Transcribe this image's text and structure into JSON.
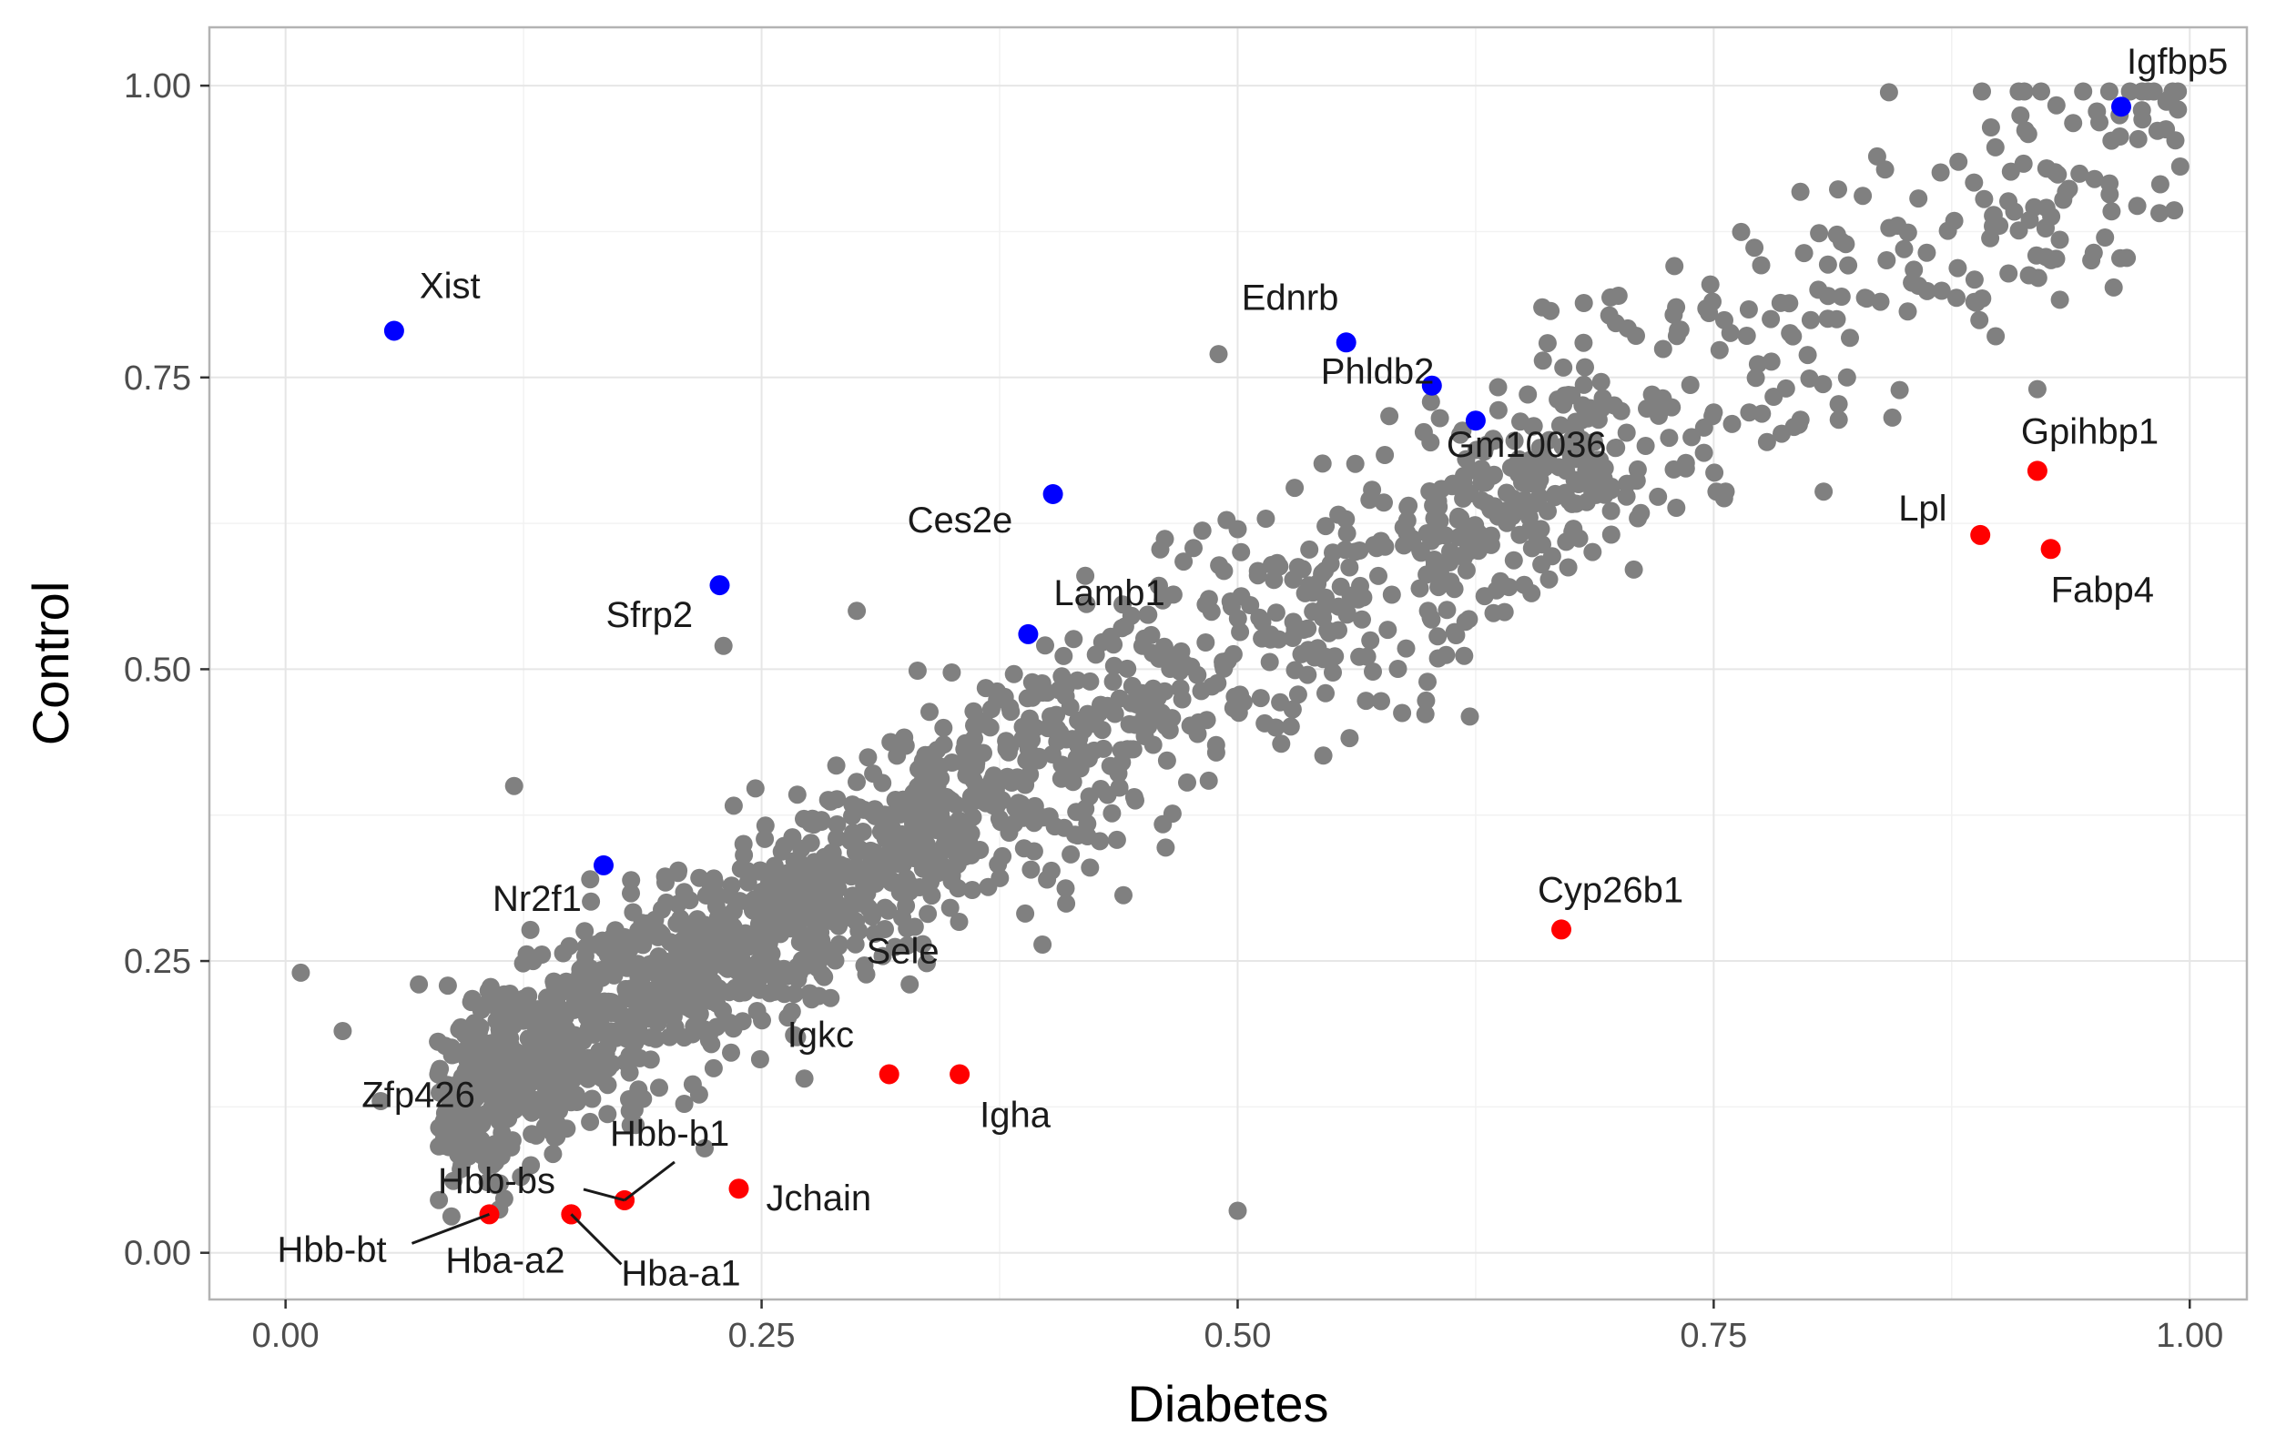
{
  "chart_data": {
    "type": "scatter",
    "title": "",
    "xlabel": "Diabetes",
    "ylabel": "Control",
    "xlim": [
      -0.04,
      1.03
    ],
    "ylim": [
      -0.04,
      1.05
    ],
    "x_ticks": [
      0,
      0.25,
      0.5,
      0.75,
      1.0
    ],
    "y_ticks": [
      0,
      0.25,
      0.5,
      0.75,
      1.0
    ],
    "x_tick_labels": [
      "0.00",
      "0.25",
      "0.50",
      "0.75",
      "1.00"
    ],
    "y_tick_labels": [
      "0.00",
      "0.25",
      "0.50",
      "0.75",
      "1.00"
    ],
    "grid": true,
    "legend": "none",
    "colors": {
      "background_points": "#808080",
      "up_in_diabetes": "#ff0000",
      "up_in_control": "#0000ff",
      "grid": "#e6e6e6",
      "panel_border": "#b3b3b3"
    },
    "background_points": {
      "description_count": "approx. 2000 grey genes along the diagonal",
      "sample": [
        [
          0.008,
          0.24
        ],
        [
          0.03,
          0.19
        ],
        [
          0.05,
          0.13
        ],
        [
          0.07,
          0.23
        ],
        [
          0.1,
          0.17
        ],
        [
          0.12,
          0.4
        ],
        [
          0.13,
          0.25
        ],
        [
          0.16,
          0.32
        ],
        [
          0.2,
          0.3
        ],
        [
          0.23,
          0.52
        ],
        [
          0.25,
          0.29
        ],
        [
          0.28,
          0.22
        ],
        [
          0.3,
          0.55
        ],
        [
          0.32,
          0.35
        ],
        [
          0.35,
          0.42
        ],
        [
          0.38,
          0.36
        ],
        [
          0.4,
          0.48
        ],
        [
          0.42,
          0.58
        ],
        [
          0.45,
          0.52
        ],
        [
          0.49,
          0.77
        ],
        [
          0.5,
          0.62
        ],
        [
          0.5,
          0.036
        ],
        [
          0.52,
          0.45
        ],
        [
          0.55,
          0.6
        ],
        [
          0.6,
          0.55
        ],
        [
          0.62,
          0.68
        ],
        [
          0.66,
          0.81
        ],
        [
          0.7,
          0.82
        ],
        [
          0.75,
          0.72
        ],
        [
          0.78,
          0.8
        ],
        [
          0.82,
          0.75
        ],
        [
          0.85,
          0.86
        ],
        [
          0.9,
          0.88
        ],
        [
          0.92,
          0.74
        ],
        [
          0.95,
          0.92
        ],
        [
          0.99,
          0.99
        ]
      ]
    },
    "highlighted": [
      {
        "label": "Xist",
        "x": 0.057,
        "y": 0.79,
        "group": "control"
      },
      {
        "label": "Igfbp5",
        "x": 0.964,
        "y": 0.982,
        "group": "control"
      },
      {
        "label": "Ednrb",
        "x": 0.557,
        "y": 0.78,
        "group": "control"
      },
      {
        "label": "Phldb2",
        "x": 0.602,
        "y": 0.743,
        "group": "control"
      },
      {
        "label": "Gm10036",
        "x": 0.625,
        "y": 0.713,
        "group": "control"
      },
      {
        "label": "Ces2e",
        "x": 0.403,
        "y": 0.65,
        "group": "control"
      },
      {
        "label": "Sfrp2",
        "x": 0.228,
        "y": 0.572,
        "group": "control"
      },
      {
        "label": "Lamb1",
        "x": 0.39,
        "y": 0.53,
        "group": "control"
      },
      {
        "label": "Nr2f1",
        "x": 0.167,
        "y": 0.332,
        "group": "control"
      },
      {
        "label": "Gpihbp1",
        "x": 0.92,
        "y": 0.67,
        "group": "diabetes"
      },
      {
        "label": "Lpl",
        "x": 0.89,
        "y": 0.615,
        "group": "diabetes"
      },
      {
        "label": "Fabp4",
        "x": 0.927,
        "y": 0.603,
        "group": "diabetes"
      },
      {
        "label": "Cyp26b1",
        "x": 0.67,
        "y": 0.277,
        "group": "diabetes"
      },
      {
        "label": "Igkc",
        "x": 0.317,
        "y": 0.153,
        "group": "diabetes"
      },
      {
        "label": "Igha",
        "x": 0.354,
        "y": 0.153,
        "group": "diabetes"
      },
      {
        "label": "Jchain",
        "x": 0.238,
        "y": 0.055,
        "group": "diabetes"
      },
      {
        "label": "Hbb-b1",
        "x": 0.178,
        "y": 0.045,
        "group": "diabetes"
      },
      {
        "label": "Hbb-bs",
        "x": 0.178,
        "y": 0.045,
        "group": "diabetes"
      },
      {
        "label": "Hba-a1",
        "x": 0.15,
        "y": 0.033,
        "group": "diabetes"
      },
      {
        "label": "Hba-a2",
        "x": 0.15,
        "y": 0.033,
        "group": "diabetes"
      },
      {
        "label": "Hbb-bt",
        "x": 0.107,
        "y": 0.033,
        "group": "diabetes"
      }
    ],
    "unhighlighted_labels": [
      "Sele",
      "Zfp426"
    ]
  }
}
